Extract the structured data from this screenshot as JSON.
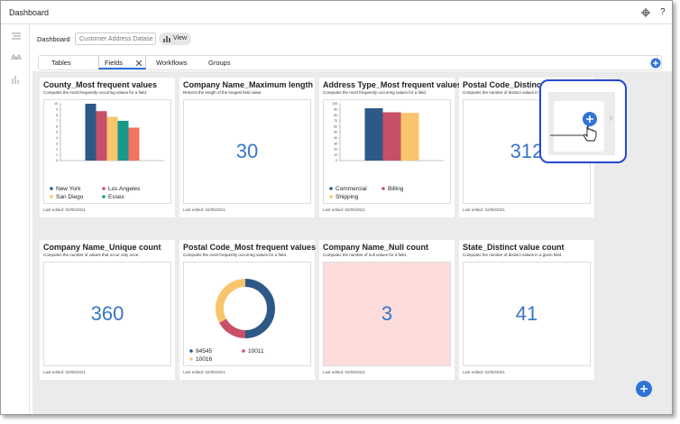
{
  "title_bar": {
    "title": "Dashboard",
    "help": "?"
  },
  "toolbar": {
    "label": "Dashboard",
    "dataset": "Customer Address Datase",
    "button": "View"
  },
  "tabs": [
    "Tables",
    "Fields",
    "Workflows",
    "Groups"
  ],
  "active_tab": 1,
  "cards": [
    {
      "title": "County_Most frequent values",
      "description": "Computes the most frequently occurring values for a field.",
      "footer": "Last edited: 02/05/2021",
      "chart": {
        "type": "bar",
        "categories": [
          "New York",
          "Los Angeles",
          "San Diego",
          "Essex",
          null
        ],
        "values": [
          10,
          8.7,
          7.7,
          7,
          5.8
        ],
        "colors": [
          "#2e5987",
          "#c75068",
          "#f8c56c",
          "#17998c",
          "#f2745d"
        ],
        "ylim": [
          0,
          10
        ],
        "yticks": [
          0,
          1,
          2,
          3,
          4,
          5,
          6,
          7,
          8,
          9,
          10
        ]
      }
    },
    {
      "title": "Company Name_Maximum length",
      "description": "Returns the length of the longest field value.",
      "footer": "Last edited: 02/05/2021",
      "value": 30
    },
    {
      "title": "Address Type_Most frequent values",
      "description": "Computes the most frequently occurring values for a field.",
      "footer": "Last edited: 02/05/2021",
      "chart": {
        "type": "bar",
        "categories": [
          "Commercial",
          "Billing",
          "Shipping"
        ],
        "values": [
          92,
          85,
          84
        ],
        "colors": [
          "#2e5987",
          "#c75068",
          "#f8c56c"
        ],
        "ylim": [
          0,
          100
        ],
        "yticks": [
          0,
          10,
          20,
          30,
          40,
          50,
          60,
          70,
          80,
          90,
          100
        ]
      }
    },
    {
      "title": "Postal Code_Distinct value count",
      "description": "Computes the number of distinct values in a given field.",
      "footer": "Last edited: 02/05/2021",
      "value": 312
    },
    {
      "title": "Company Name_Unique count",
      "description": "Computes the number of values that occur only once.",
      "footer": "Last edited: 02/05/2021",
      "value": 360
    },
    {
      "title": "Postal Code_Most frequent values",
      "description": "Computes the most frequently occurring values for a field.",
      "footer": "Last edited: 02/05/2021",
      "chart": {
        "type": "pie",
        "categories": [
          "94545",
          "10011",
          "10016"
        ],
        "values": [
          50,
          17,
          33
        ],
        "colors": [
          "#2e5987",
          "#c75068",
          "#f8c56c"
        ]
      }
    },
    {
      "title": "Company Name_Null count",
      "description": "Computes the number of null values for a field.",
      "footer": "Last edited: 02/05/2021",
      "value": 3,
      "highlight": "#fddcdc"
    },
    {
      "title": "State_Distinct value count",
      "description": "Computes the number of distinct values in a given field.",
      "footer": "Last edited: 02/05/2021",
      "value": 41
    }
  ]
}
